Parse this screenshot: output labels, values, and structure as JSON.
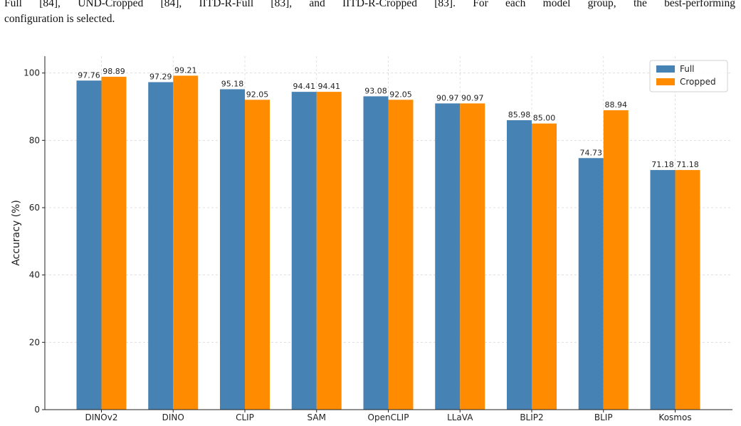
{
  "caption": {
    "line1": "Full [84], UND-Cropped [84], IITD-R-Full [83], and IITD-R-Cropped [83]. For each model group, the best-performing",
    "line2": "configuration is selected."
  },
  "chart_data": {
    "type": "bar",
    "title": "",
    "xlabel": "",
    "ylabel": "Accuracy (%)",
    "ylim": [
      0,
      105
    ],
    "yticks": [
      0,
      20,
      40,
      60,
      80,
      100
    ],
    "grid": true,
    "legend_position": "top-right",
    "categories": [
      "DINOv2",
      "DINO",
      "CLIP",
      "SAM",
      "OpenCLIP",
      "LLaVA",
      "BLIP2",
      "BLIP",
      "Kosmos"
    ],
    "series": [
      {
        "name": "Full",
        "color": "#4682b4",
        "values": [
          97.76,
          97.29,
          95.18,
          94.41,
          93.08,
          90.97,
          85.98,
          74.73,
          71.18
        ],
        "labels": [
          "97.76",
          "97.29",
          "95.18",
          "94.41",
          "93.08",
          "90.97",
          "85.98",
          "74.73",
          "71.18"
        ]
      },
      {
        "name": "Cropped",
        "color": "#ff8c00",
        "values": [
          98.89,
          99.21,
          92.05,
          94.41,
          92.05,
          90.97,
          85.0,
          88.94,
          71.18
        ],
        "labels": [
          "98.89",
          "99.21",
          "92.05",
          "94.41",
          "92.05",
          "90.97",
          "85.00",
          "88.94",
          "71.18"
        ]
      }
    ]
  }
}
